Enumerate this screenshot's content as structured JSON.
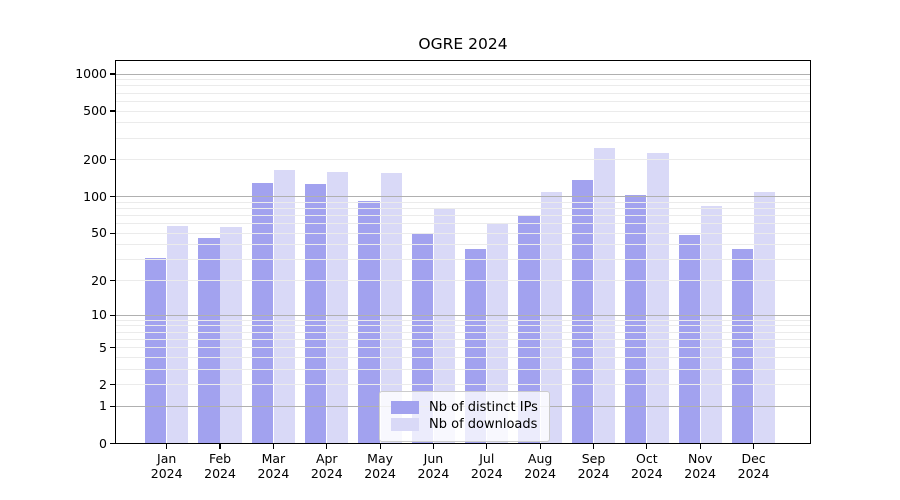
{
  "title": "OGRE 2024",
  "chart_data": {
    "type": "bar",
    "title": "OGRE 2024",
    "categories": [
      "Jan 2024",
      "Feb 2024",
      "Mar 2024",
      "Apr 2024",
      "May 2024",
      "Jun 2024",
      "Jul 2024",
      "Aug 2024",
      "Sep 2024",
      "Oct 2024",
      "Nov 2024",
      "Dec 2024"
    ],
    "series": [
      {
        "name": "Nb of distinct IPs",
        "color": "#a2a2ef",
        "values": [
          31,
          46,
          130,
          128,
          92,
          49,
          37,
          70,
          136,
          104,
          48,
          37
        ]
      },
      {
        "name": "Nb of downloads",
        "color": "#d9d9f7",
        "values": [
          57,
          56,
          166,
          160,
          157,
          80,
          60,
          110,
          249,
          229,
          84,
          110
        ]
      }
    ],
    "xlabel": "",
    "ylabel": "",
    "yscale": "log(1+x)",
    "yticks": [
      0,
      1,
      2,
      5,
      10,
      20,
      50,
      100,
      200,
      500,
      1000
    ],
    "ylim": [
      0,
      1300
    ],
    "grid": "both, drawn above bars; major lines at 1,10,100,1000",
    "legend_position": "lower center inside plot"
  },
  "colors": {
    "bar_distinct_ips": "#a2a2ef",
    "bar_downloads": "#d9d9f7",
    "grid_major": "#b0b0b0",
    "grid_minor": "#ebebeb",
    "axis": "#000000",
    "legend_border": "#cccccc"
  }
}
